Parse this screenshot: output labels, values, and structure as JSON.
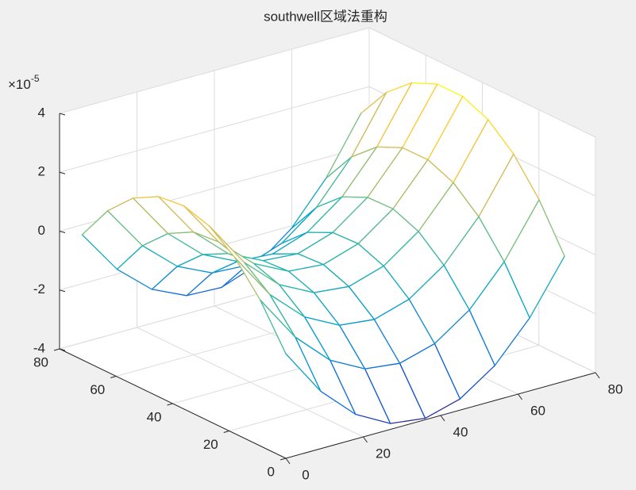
{
  "chart_data": {
    "type": "mesh",
    "title": "southwell区域法重构",
    "x": [
      0,
      9,
      18,
      27,
      36,
      45,
      54,
      63,
      72
    ],
    "y": [
      0,
      9,
      18,
      27,
      36,
      45,
      54,
      63,
      72
    ],
    "z": [
      [
        -0.45,
        -2.05,
        -3.16,
        -3.8,
        -3.95,
        -3.62,
        -2.81,
        -1.52,
        0.25
      ],
      [
        0.95,
        -0.63,
        -1.74,
        -2.36,
        -2.5,
        -2.16,
        -1.34,
        -0.03,
        1.75
      ],
      [
        1.98,
        0.4,
        -0.69,
        -1.3,
        -1.43,
        -1.07,
        -0.24,
        1.08,
        2.88
      ],
      [
        2.63,
        1.07,
        -0.01,
        -0.61,
        -0.73,
        -0.36,
        0.49,
        1.82,
        3.63
      ],
      [
        2.9,
        1.35,
        0.29,
        -0.3,
        -0.4,
        -0.02,
        0.84,
        2.18,
        4.0
      ],
      [
        2.8,
        1.27,
        0.21,
        -0.36,
        -0.45,
        -0.06,
        0.81,
        2.17,
        4.0
      ],
      [
        2.33,
        0.8,
        -0.24,
        -0.8,
        -0.88,
        -0.47,
        0.41,
        1.78,
        3.63
      ],
      [
        1.48,
        -0.03,
        -1.06,
        -1.61,
        -1.68,
        -1.26,
        -0.36,
        1.02,
        2.88
      ],
      [
        0.25,
        -1.25,
        -2.26,
        -2.8,
        -2.85,
        -2.42,
        -1.51,
        -0.12,
        1.75
      ]
    ],
    "xlim": [
      0,
      80
    ],
    "ylim": [
      0,
      80
    ],
    "zlim": [
      -4,
      4
    ],
    "xticks": [
      0,
      20,
      40,
      60,
      80
    ],
    "yticks": [
      0,
      20,
      40,
      60,
      80
    ],
    "zticks": [
      -4,
      -2,
      0,
      2,
      4
    ],
    "z_exponent": {
      "base": "×10",
      "power": "-5"
    },
    "colormap": [
      "#352a87",
      "#0f5cdd",
      "#1481d6",
      "#06a4ca",
      "#2eb7a4",
      "#87bf77",
      "#d1bb59",
      "#fec832",
      "#f9fb0e"
    ],
    "grid": true
  }
}
